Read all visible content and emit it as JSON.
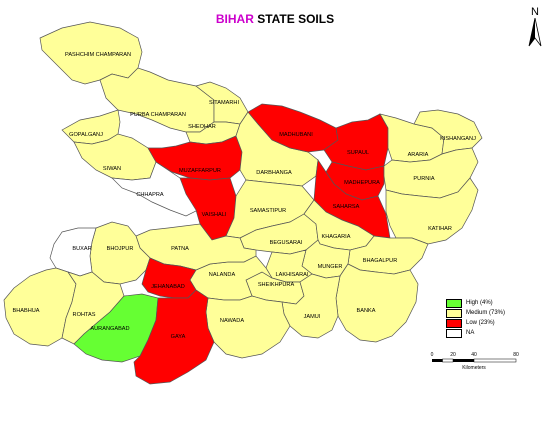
{
  "title": {
    "part1": "BIHAR",
    "part2": " STATE SOILS",
    "part1_color": "#cc00cc"
  },
  "colors": {
    "high": "#66ff33",
    "medium": "#ffff99",
    "low": "#ff0000",
    "na": "#ffffff",
    "border": "#555555"
  },
  "legend": [
    {
      "label": "High (4%)",
      "color": "#66ff33"
    },
    {
      "label": "Medium (73%)",
      "color": "#ffff99"
    },
    {
      "label": "Low (23%)",
      "color": "#ff0000"
    },
    {
      "label": "NA",
      "color": "#ffffff"
    }
  ],
  "north_label": "N",
  "scale": {
    "ticks": [
      "0",
      "20",
      "40",
      "80"
    ],
    "unit": "Kilometers"
  },
  "districts": [
    {
      "id": "pashchim-champaran",
      "name": "PASHCHIM CHAMPARAN",
      "class": "medium"
    },
    {
      "id": "purba-champaran",
      "name": "PURBA CHAMPARAN",
      "class": "medium"
    },
    {
      "id": "sitamarhi",
      "name": "SITAMARHI",
      "class": "medium"
    },
    {
      "id": "sheohar",
      "name": "SHEOHAR",
      "class": "medium"
    },
    {
      "id": "gopalganj",
      "name": "GOPALGANJ",
      "class": "medium"
    },
    {
      "id": "siwan",
      "name": "SIWAN",
      "class": "medium"
    },
    {
      "id": "chhapra",
      "name": "CHHAPRA",
      "class": "na"
    },
    {
      "id": "muzaffarpur",
      "name": "MUZAFFARPUR",
      "class": "low"
    },
    {
      "id": "vaishali",
      "name": "VAISHALI",
      "class": "low"
    },
    {
      "id": "darbhanga",
      "name": "DARBHANGA",
      "class": "medium"
    },
    {
      "id": "madhubani",
      "name": "MADHUBANI",
      "class": "low"
    },
    {
      "id": "supaul",
      "name": "SUPAUL",
      "class": "low"
    },
    {
      "id": "madhepura",
      "name": "MADHEPURA",
      "class": "low"
    },
    {
      "id": "saharsa",
      "name": "SAHARSA",
      "class": "low"
    },
    {
      "id": "araria",
      "name": "ARARIA",
      "class": "medium"
    },
    {
      "id": "kishanganj",
      "name": "KISHANGANJ",
      "class": "medium"
    },
    {
      "id": "purnia",
      "name": "PURNIA",
      "class": "medium"
    },
    {
      "id": "katihar",
      "name": "KATIHAR",
      "class": "medium"
    },
    {
      "id": "samastipur",
      "name": "SAMASTIPUR",
      "class": "medium"
    },
    {
      "id": "begusarai",
      "name": "BEGUSARAI",
      "class": "medium"
    },
    {
      "id": "khagaria",
      "name": "KHAGARIA",
      "class": "medium"
    },
    {
      "id": "bhagalpur",
      "name": "BHAGALPUR",
      "class": "medium"
    },
    {
      "id": "munger",
      "name": "MUNGER",
      "class": "medium"
    },
    {
      "id": "lakhisarai",
      "name": "LAKHISARAI",
      "class": "medium"
    },
    {
      "id": "sheikhpura",
      "name": "SHEIKHPURA",
      "class": "medium"
    },
    {
      "id": "banka",
      "name": "BANKA",
      "class": "medium"
    },
    {
      "id": "jamui",
      "name": "JAMUI",
      "class": "medium"
    },
    {
      "id": "nalanda",
      "name": "NALANDA",
      "class": "medium"
    },
    {
      "id": "nawada",
      "name": "NAWADA",
      "class": "medium"
    },
    {
      "id": "patna",
      "name": "PATNA",
      "class": "medium"
    },
    {
      "id": "bhojpur",
      "name": "BHOJPUR",
      "class": "medium"
    },
    {
      "id": "buxar",
      "name": "BUXAR",
      "class": "na"
    },
    {
      "id": "bhabhua",
      "name": "BHABHUA",
      "class": "medium"
    },
    {
      "id": "rohtas",
      "name": "ROHTAS",
      "class": "medium"
    },
    {
      "id": "jehanabad",
      "name": "JEHANABAD",
      "class": "low"
    },
    {
      "id": "aurangabad",
      "name": "AURANGABAD",
      "class": "high"
    },
    {
      "id": "gaya",
      "name": "GAYA",
      "class": "low"
    }
  ]
}
